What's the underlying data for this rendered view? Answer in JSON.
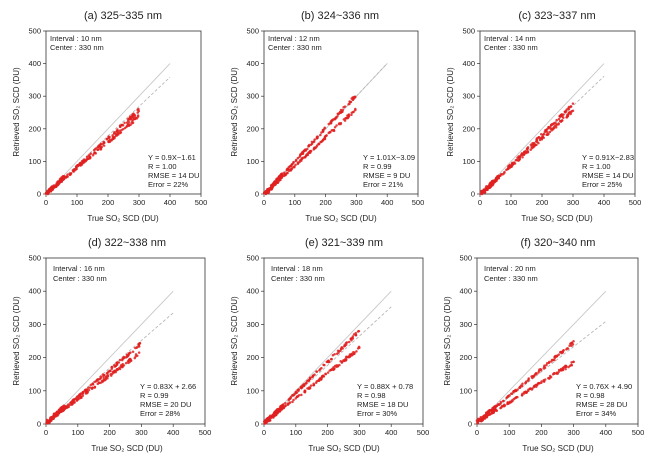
{
  "figure": {
    "axis_text": {
      "xlabel": "True SO₂ SCD (DU)",
      "ylabel": "Retrieved SO₂ SCD (DU)"
    }
  },
  "colors": {
    "points": "#e02020",
    "one_to_one": "#c8c8c8",
    "fit": "#b8b8b8",
    "axis": "#333333"
  },
  "chart_data": [
    {
      "type": "scatter",
      "title": "(a) 325~335 nm",
      "xlabel": "True SO₂ SCD (DU)",
      "ylabel": "Retrieved SO₂ SCD (DU)",
      "xlim": [
        0,
        500
      ],
      "ylim": [
        0,
        500
      ],
      "xticks": [
        0,
        100,
        200,
        300,
        400,
        500
      ],
      "yticks": [
        0,
        100,
        200,
        300,
        400,
        500
      ],
      "info": [
        "Interval : 10 nm",
        "Center : 330 nm"
      ],
      "stats": [
        "Y = 0.9X−1.61",
        "R = 1.00",
        "RMSE = 14 DU",
        "Error = 22%"
      ],
      "fit": {
        "slope": 0.9,
        "intercept": -1.61
      },
      "branches": [
        {
          "slope": 0.86,
          "intercept": -1
        },
        {
          "slope": 0.8,
          "intercept": -1
        }
      ],
      "x_max": 300
    },
    {
      "type": "scatter",
      "title": "(b) 324~336 nm",
      "xlabel": "True SO₂ SCD (DU)",
      "ylabel": "Retrieved SO₂ SCD (DU)",
      "xlim": [
        0,
        500
      ],
      "ylim": [
        0,
        500
      ],
      "xticks": [
        0,
        100,
        200,
        300,
        400,
        500
      ],
      "yticks": [
        0,
        100,
        200,
        300,
        400,
        500
      ],
      "info": [
        "Interval : 12 nm",
        "Center : 330 nm"
      ],
      "stats": [
        "Y = 1.01X−3.09",
        "R = 0.99",
        "RMSE = 9 DU",
        "Error = 21%"
      ],
      "fit": {
        "slope": 1.01,
        "intercept": -3.09
      },
      "branches": [
        {
          "slope": 1.02,
          "intercept": -2
        },
        {
          "slope": 0.88,
          "intercept": -2
        }
      ],
      "x_max": 300
    },
    {
      "type": "scatter",
      "title": "(c) 323~337 nm",
      "xlabel": "True SO₂ SCD (DU)",
      "ylabel": "Retrieved SO₂ SCD (DU)",
      "xlim": [
        0,
        500
      ],
      "ylim": [
        0,
        500
      ],
      "xticks": [
        0,
        100,
        200,
        300,
        400,
        500
      ],
      "yticks": [
        0,
        100,
        200,
        300,
        400,
        500
      ],
      "info": [
        "Interval : 14 nm",
        "Center : 330 nm"
      ],
      "stats": [
        "Y = 0.91X−2.83",
        "R = 1.00",
        "RMSE = 14 DU",
        "Error = 25%"
      ],
      "fit": {
        "slope": 0.91,
        "intercept": -2.83
      },
      "branches": [
        {
          "slope": 0.92,
          "intercept": -2
        },
        {
          "slope": 0.86,
          "intercept": -2
        }
      ],
      "x_max": 300
    },
    {
      "type": "scatter",
      "title": "(d) 322~338 nm",
      "xlabel": "True SO₂ SCD (DU)",
      "ylabel": "Retrieved SO₂ SCD (DU)",
      "xlim": [
        0,
        500
      ],
      "ylim": [
        0,
        500
      ],
      "xticks": [
        0,
        100,
        200,
        300,
        400,
        500
      ],
      "yticks": [
        0,
        100,
        200,
        300,
        400,
        500
      ],
      "info": [
        "Interval : 16 nm",
        "Center : 330 nm"
      ],
      "stats": [
        "Y = 0.83X + 2.66",
        "R = 0.99",
        "RMSE = 20 DU",
        "Error = 28%"
      ],
      "fit": {
        "slope": 0.83,
        "intercept": 2.66
      },
      "branches": [
        {
          "slope": 0.8,
          "intercept": 2
        },
        {
          "slope": 0.72,
          "intercept": 2
        }
      ],
      "x_max": 300
    },
    {
      "type": "scatter",
      "title": "(e) 321~339 nm",
      "xlabel": "True SO₂ SCD (DU)",
      "ylabel": "Retrieved SO₂ SCD (DU)",
      "xlim": [
        0,
        500
      ],
      "ylim": [
        0,
        500
      ],
      "xticks": [
        0,
        100,
        200,
        300,
        400,
        500
      ],
      "yticks": [
        0,
        100,
        200,
        300,
        400,
        500
      ],
      "info": [
        "Interval : 18 nm",
        "Center : 330 nm"
      ],
      "stats": [
        "Y = 0.88X + 0.78",
        "R = 0.98",
        "RMSE = 18 DU",
        "Error = 30%"
      ],
      "fit": {
        "slope": 0.88,
        "intercept": 0.78
      },
      "branches": [
        {
          "slope": 0.93,
          "intercept": 1
        },
        {
          "slope": 0.76,
          "intercept": 1
        }
      ],
      "x_max": 300
    },
    {
      "type": "scatter",
      "title": "(f) 320~340 nm",
      "xlabel": "True SO₂ SCD (DU)",
      "ylabel": "Retrieved SO₂ SCD (DU)",
      "xlim": [
        0,
        500
      ],
      "ylim": [
        0,
        500
      ],
      "xticks": [
        0,
        100,
        200,
        300,
        400,
        500
      ],
      "yticks": [
        0,
        100,
        200,
        300,
        400,
        500
      ],
      "info": [
        "Interval : 20 nm",
        "Center : 330 nm"
      ],
      "stats": [
        "Y = 0.76X + 4.90",
        "R = 0.98",
        "RMSE = 28 DU",
        "Error = 34%"
      ],
      "fit": {
        "slope": 0.76,
        "intercept": 4.9
      },
      "branches": [
        {
          "slope": 0.8,
          "intercept": 5
        },
        {
          "slope": 0.6,
          "intercept": 5
        }
      ],
      "x_max": 300
    }
  ]
}
